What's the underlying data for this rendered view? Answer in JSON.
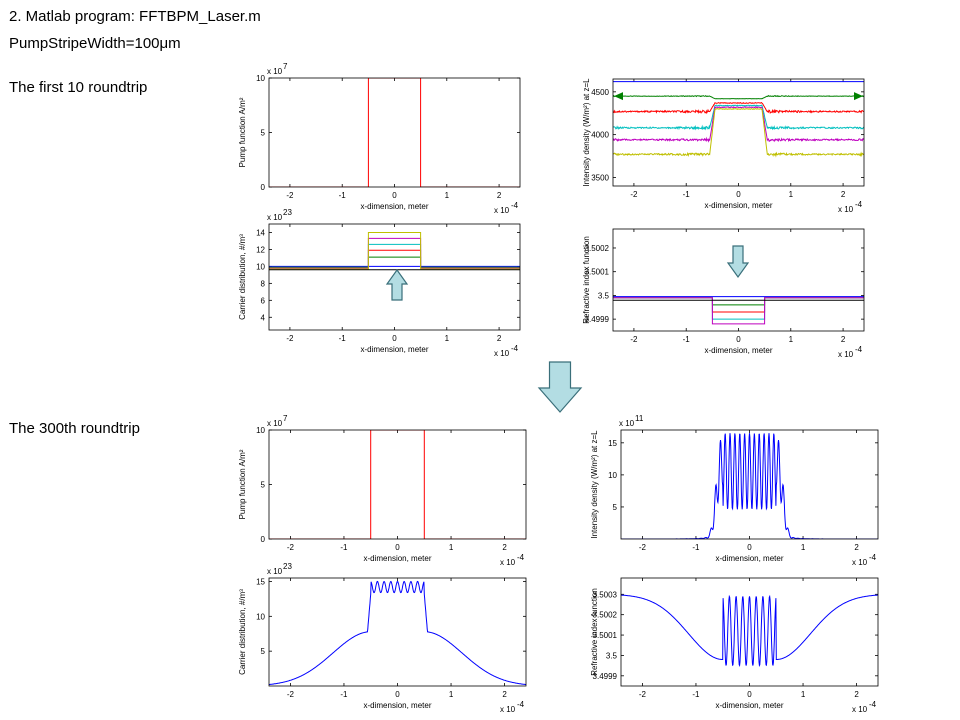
{
  "slide": {
    "heading": "2. Matlab program: FFTBPM_Laser.m",
    "param": "PumpStripeWidth=100",
    "param_unit": "μm",
    "label_first": "The first 10 roundtrip",
    "label_300": "The 300th roundtrip"
  },
  "colors": {
    "pump": "#ff0000",
    "blue": "#0000ff",
    "green": "#008000",
    "red": "#ff0000",
    "cyan": "#00bfbf",
    "magenta": "#bf00bf",
    "olive": "#bfbf00",
    "black": "#000000",
    "arrow_fill": "#b3dde3",
    "arrow_stroke": "#3a6f7a"
  },
  "arrows": [
    {
      "name": "up-arrow-icon",
      "dir": "up"
    },
    {
      "name": "down-arrow-icon",
      "dir": "down"
    },
    {
      "name": "big-down-arrow-icon",
      "dir": "down"
    }
  ],
  "chart_data": [
    {
      "id": "p1",
      "type": "line",
      "panel": "first-10-pump",
      "xlabel": "x-dimension, meter",
      "ylabel": "Pump function A/m²",
      "xlim": [
        -2.4,
        2.4
      ],
      "ylim": [
        0,
        10
      ],
      "xticks": [
        -2,
        -1,
        0,
        1,
        2
      ],
      "xticklabels": [
        "-2",
        "-1",
        "0",
        "1",
        "2"
      ],
      "yticks": [
        0,
        5,
        10
      ],
      "yticklabels": [
        "0",
        "5",
        "10"
      ],
      "yexp": "x 10",
      "yexp_power": "7",
      "xexp": "x 10",
      "xexp_power": "-4",
      "series": [
        {
          "color": "red",
          "x": [
            -2.4,
            -0.5,
            -0.5,
            0.5,
            0.5,
            2.4
          ],
          "y": [
            0,
            0,
            10,
            10,
            0,
            0
          ]
        }
      ]
    },
    {
      "id": "p2",
      "type": "line",
      "panel": "first-10-intensity",
      "xlabel": "x-dimension, meter",
      "ylabel": "Intensity density (W/m²) at z=L",
      "xlim": [
        -2.4,
        2.4
      ],
      "ylim": [
        3400,
        4650
      ],
      "xticks": [
        -2,
        -1,
        0,
        1,
        2
      ],
      "xticklabels": [
        "-2",
        "-1",
        "0",
        "1",
        "2"
      ],
      "yticks": [
        3500,
        4000,
        4500
      ],
      "yticklabels": [
        "3500",
        "4000",
        "4500"
      ],
      "xexp": "x 10",
      "xexp_power": "-4",
      "series": [
        {
          "color": "green",
          "noise": 6,
          "x": [
            -2.4,
            -0.55,
            -0.45,
            0.45,
            0.55,
            2.4
          ],
          "y": [
            4450,
            4450,
            4420,
            4420,
            4450,
            4450
          ]
        },
        {
          "color": "red",
          "noise": 18,
          "x": [
            -2.4,
            -0.55,
            -0.45,
            0.45,
            0.55,
            2.4
          ],
          "y": [
            4270,
            4270,
            4370,
            4370,
            4270,
            4270
          ]
        },
        {
          "color": "cyan",
          "noise": 18,
          "x": [
            -2.4,
            -0.55,
            -0.45,
            0.45,
            0.55,
            2.4
          ],
          "y": [
            4080,
            4080,
            4340,
            4340,
            4080,
            4080
          ]
        },
        {
          "color": "magenta",
          "noise": 18,
          "x": [
            -2.4,
            -0.55,
            -0.45,
            0.45,
            0.55,
            2.4
          ],
          "y": [
            3940,
            3940,
            4320,
            4320,
            3940,
            3940
          ]
        },
        {
          "color": "olive",
          "noise": 18,
          "x": [
            -2.4,
            -0.55,
            -0.45,
            0.45,
            0.55,
            2.4
          ],
          "y": [
            3770,
            3770,
            4300,
            4300,
            3770,
            3770
          ]
        },
        {
          "color": "blue",
          "noise": 0,
          "x": [
            -2.4,
            2.4
          ],
          "y": [
            4620,
            4620
          ]
        }
      ]
    },
    {
      "id": "p3",
      "type": "line",
      "panel": "first-10-carrier",
      "xlabel": "x-dimension, meter",
      "ylabel": "Carrier distribution, #/m³",
      "xlim": [
        -2.4,
        2.4
      ],
      "ylim": [
        2.5,
        15
      ],
      "xticks": [
        -2,
        -1,
        0,
        1,
        2
      ],
      "xticklabels": [
        "-2",
        "-1",
        "0",
        "1",
        "2"
      ],
      "yticks": [
        4,
        6,
        8,
        10,
        12,
        14
      ],
      "yticklabels": [
        "4",
        "6",
        "8",
        "10",
        "12",
        "14"
      ],
      "yexp": "x 10",
      "yexp_power": "23",
      "xexp": "x 10",
      "xexp_power": "-4",
      "series": [
        {
          "color": "blue",
          "x": [
            -2.4,
            -0.5,
            -0.5,
            0.5,
            0.5,
            2.4
          ],
          "y": [
            10,
            10,
            10,
            10,
            10,
            10
          ]
        },
        {
          "color": "green",
          "x": [
            -2.4,
            -0.5,
            -0.5,
            0.5,
            0.5,
            2.4
          ],
          "y": [
            9.9,
            9.9,
            11.1,
            11.1,
            9.9,
            9.9
          ]
        },
        {
          "color": "red",
          "x": [
            -2.4,
            -0.5,
            -0.5,
            0.5,
            0.5,
            2.4
          ],
          "y": [
            9.85,
            9.85,
            11.9,
            11.9,
            9.85,
            9.85
          ]
        },
        {
          "color": "cyan",
          "x": [
            -2.4,
            -0.5,
            -0.5,
            0.5,
            0.5,
            2.4
          ],
          "y": [
            9.8,
            9.8,
            12.6,
            12.6,
            9.8,
            9.8
          ]
        },
        {
          "color": "magenta",
          "x": [
            -2.4,
            -0.5,
            -0.5,
            0.5,
            0.5,
            2.4
          ],
          "y": [
            9.75,
            9.75,
            13.3,
            13.3,
            9.75,
            9.75
          ]
        },
        {
          "color": "olive",
          "x": [
            -2.4,
            -0.5,
            -0.5,
            0.5,
            0.5,
            2.4
          ],
          "y": [
            9.7,
            9.7,
            14,
            14,
            9.7,
            9.7
          ]
        },
        {
          "color": "black",
          "x": [
            -2.4,
            -0.5,
            -0.5,
            0.5,
            0.5,
            2.4
          ],
          "y": [
            9.6,
            9.6,
            9.6,
            9.6,
            9.6,
            9.6
          ]
        }
      ]
    },
    {
      "id": "p4",
      "type": "line",
      "panel": "first-10-refractive",
      "xlabel": "x-dimension, meter",
      "ylabel": "Refractive index function",
      "xlim": [
        -2.4,
        2.4
      ],
      "ylim": [
        3.49985,
        3.50028
      ],
      "xticks": [
        -2,
        -1,
        0,
        1,
        2
      ],
      "xticklabels": [
        "-2",
        "-1",
        "0",
        "1",
        "2"
      ],
      "yticks": [
        3.4999,
        3.5,
        3.5001,
        3.5002
      ],
      "yticklabels": [
        "3.4999",
        "3.5",
        "3.5001",
        "3.5002"
      ],
      "xexp": "x 10",
      "xexp_power": "-4",
      "series": [
        {
          "color": "blue",
          "x": [
            -2.4,
            -0.5,
            -0.5,
            0.5,
            0.5,
            2.4
          ],
          "y": [
            3.499995,
            3.499995,
            3.499995,
            3.499995,
            3.499995,
            3.499995
          ]
        },
        {
          "color": "green",
          "x": [
            -2.4,
            -0.5,
            -0.5,
            0.5,
            0.5,
            2.4
          ],
          "y": [
            3.49999,
            3.49999,
            3.49996,
            3.49996,
            3.49999,
            3.49999
          ]
        },
        {
          "color": "red",
          "x": [
            -2.4,
            -0.5,
            -0.5,
            0.5,
            0.5,
            2.4
          ],
          "y": [
            3.49999,
            3.49999,
            3.49993,
            3.49993,
            3.49999,
            3.49999
          ]
        },
        {
          "color": "cyan",
          "x": [
            -2.4,
            -0.5,
            -0.5,
            0.5,
            0.5,
            2.4
          ],
          "y": [
            3.49999,
            3.49999,
            3.4999,
            3.4999,
            3.49999,
            3.49999
          ]
        },
        {
          "color": "magenta",
          "x": [
            -2.4,
            -0.5,
            -0.5,
            0.5,
            0.5,
            2.4
          ],
          "y": [
            3.49999,
            3.49999,
            3.49988,
            3.49988,
            3.49999,
            3.49999
          ]
        },
        {
          "color": "black",
          "x": [
            -2.4,
            -0.5,
            -0.5,
            0.5,
            0.5,
            2.4
          ],
          "y": [
            3.49998,
            3.49998,
            3.49998,
            3.49998,
            3.49998,
            3.49998
          ]
        }
      ]
    },
    {
      "id": "p5",
      "type": "line",
      "panel": "300th-pump",
      "xlabel": "x-dimension, meter",
      "ylabel": "Pump function A/m²",
      "xlim": [
        -2.4,
        2.4
      ],
      "ylim": [
        0,
        10
      ],
      "xticks": [
        -2,
        -1,
        0,
        1,
        2
      ],
      "xticklabels": [
        "-2",
        "-1",
        "0",
        "1",
        "2"
      ],
      "yticks": [
        0,
        5,
        10
      ],
      "yticklabels": [
        "0",
        "5",
        "10"
      ],
      "yexp": "x 10",
      "yexp_power": "7",
      "xexp": "x 10",
      "xexp_power": "-4",
      "series": [
        {
          "color": "red",
          "x": [
            -2.4,
            -0.5,
            -0.5,
            0.5,
            0.5,
            2.4
          ],
          "y": [
            0,
            0,
            10,
            10,
            0,
            0
          ]
        }
      ]
    },
    {
      "id": "p6",
      "type": "line",
      "panel": "300th-intensity",
      "xlabel": "x-dimension, meter",
      "ylabel": "Intensity density (W/m²) at z=L",
      "xlim": [
        -2.4,
        2.4
      ],
      "ylim": [
        0,
        17
      ],
      "xticks": [
        -2,
        -1,
        0,
        1,
        2
      ],
      "xticklabels": [
        "-2",
        "-1",
        "0",
        "1",
        "2"
      ],
      "yticks": [
        5,
        10,
        15
      ],
      "yticklabels": [
        "5",
        "10",
        "15"
      ],
      "yexp": "x 10",
      "yexp_power": "11",
      "xexp": "x 10",
      "xexp_power": "-4",
      "gen": "intensity300",
      "series": [
        {
          "color": "blue"
        }
      ]
    },
    {
      "id": "p7",
      "type": "line",
      "panel": "300th-carrier",
      "xlabel": "x-dimension, meter",
      "ylabel": "Carrier distribution, #/m³",
      "xlim": [
        -2.4,
        2.4
      ],
      "ylim": [
        0,
        15.5
      ],
      "xticks": [
        -2,
        -1,
        0,
        1,
        2
      ],
      "xticklabels": [
        "-2",
        "-1",
        "0",
        "1",
        "2"
      ],
      "yticks": [
        5,
        10,
        15
      ],
      "yticklabels": [
        "5",
        "10",
        "15"
      ],
      "yexp": "x 10",
      "yexp_power": "23",
      "xexp": "x 10",
      "xexp_power": "-4",
      "gen": "carrier300",
      "series": [
        {
          "color": "blue"
        }
      ]
    },
    {
      "id": "p8",
      "type": "line",
      "panel": "300th-refractive",
      "xlabel": "x-dimension, meter",
      "ylabel": "Refractive index function",
      "xlim": [
        -2.4,
        2.4
      ],
      "ylim": [
        3.49985,
        3.50038
      ],
      "xticks": [
        -2,
        -1,
        0,
        1,
        2
      ],
      "xticklabels": [
        "-2",
        "-1",
        "0",
        "1",
        "2"
      ],
      "yticks": [
        3.4999,
        3.5,
        3.5001,
        3.5002,
        3.5003
      ],
      "yticklabels": [
        "3.4999",
        "3.5",
        "3.5001",
        "3.5002",
        "3.5003"
      ],
      "xexp": "x 10",
      "xexp_power": "-4",
      "gen": "refractive300",
      "series": [
        {
          "color": "blue"
        }
      ]
    }
  ]
}
